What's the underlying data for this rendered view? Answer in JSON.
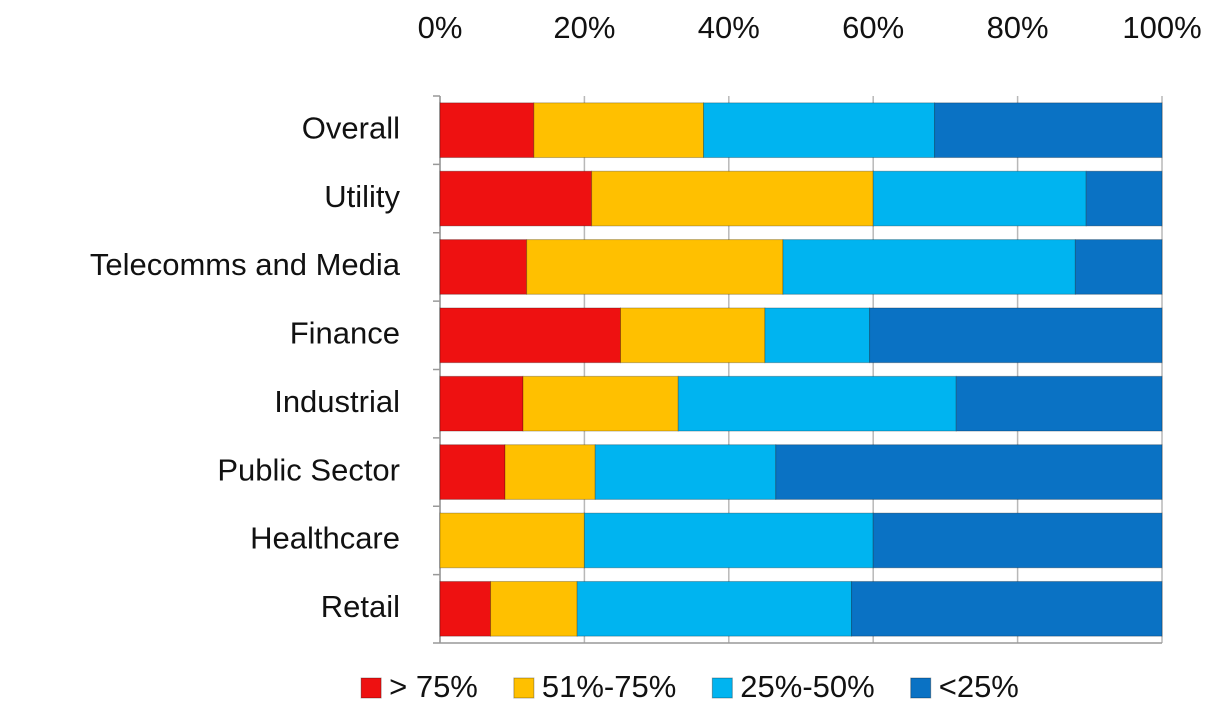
{
  "chart_data": {
    "type": "stacked-bar-horizontal",
    "categories": [
      "Overall",
      "Utility",
      "Telecomms and Media",
      "Finance",
      "Industrial",
      "Public Sector",
      "Healthcare",
      "Retail"
    ],
    "series": [
      {
        "name": "> 75%",
        "color": "#ee1111",
        "values": [
          13,
          21,
          12,
          25,
          11.5,
          9,
          0,
          7
        ]
      },
      {
        "name": "51%-75%",
        "color": "#ffc000",
        "values": [
          23.5,
          39,
          35.5,
          20,
          21.5,
          12.5,
          20,
          12
        ]
      },
      {
        "name": "25%-50%",
        "color": "#00b4f0",
        "values": [
          32,
          29.5,
          40.5,
          14.5,
          38.5,
          25,
          40,
          38
        ]
      },
      {
        "name": "<25%",
        "color": "#0a72c4",
        "values": [
          31.5,
          10.5,
          12,
          40.5,
          28.5,
          53.5,
          40,
          43
        ]
      }
    ],
    "xlim": [
      0,
      100
    ],
    "xticks": [
      {
        "value": 0,
        "label": "0%"
      },
      {
        "value": 20,
        "label": "20%"
      },
      {
        "value": 40,
        "label": "40%"
      },
      {
        "value": 60,
        "label": "60%"
      },
      {
        "value": 80,
        "label": "80%"
      },
      {
        "value": 100,
        "label": "100%"
      }
    ],
    "grid": true,
    "legend": "bottom"
  }
}
